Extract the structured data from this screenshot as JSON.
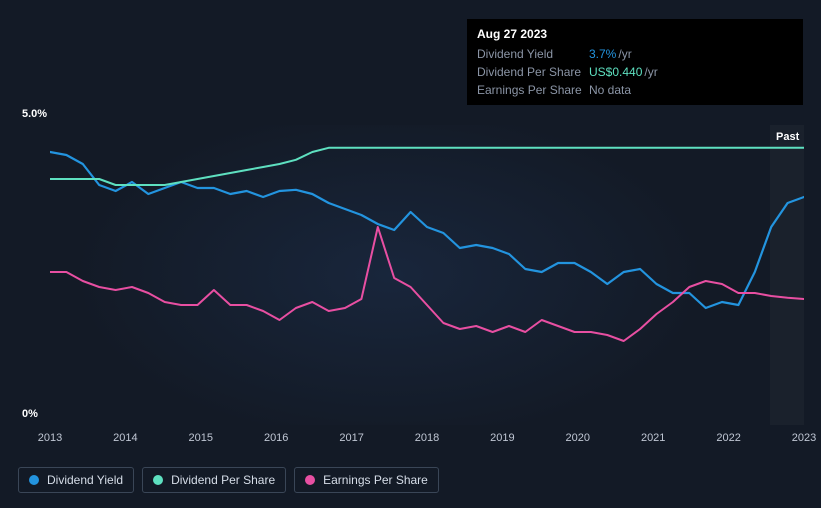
{
  "chart": {
    "type": "line",
    "background_color": "#131a26",
    "grid_visible": false,
    "y_axis": {
      "min": 0,
      "max": 5.0,
      "top_label": "5.0%",
      "bottom_label": "0%",
      "label_color": "#ffffff",
      "label_fontsize": 11
    },
    "x_axis": {
      "ticks": [
        "2013",
        "2014",
        "2015",
        "2016",
        "2017",
        "2018",
        "2019",
        "2020",
        "2021",
        "2022",
        "2023"
      ],
      "label_color": "#c0c7d4",
      "label_fontsize": 11
    },
    "highlight_line": {
      "x_index": 10.65,
      "color": "#ffffff22"
    },
    "past_region": {
      "from_x_index": 9.55,
      "label": "Past",
      "shade_color": "rgba(255,255,255,0.03)"
    },
    "series": [
      {
        "name": "Dividend Yield",
        "color": "#2394df",
        "line_width": 2.2,
        "fill_opacity": 0,
        "values": [
          4.55,
          4.5,
          4.35,
          4.0,
          3.9,
          4.05,
          3.85,
          3.95,
          4.05,
          3.95,
          3.95,
          3.85,
          3.9,
          3.8,
          3.9,
          3.92,
          3.85,
          3.7,
          3.6,
          3.5,
          3.35,
          3.25,
          3.55,
          3.3,
          3.2,
          2.95,
          3.0,
          2.95,
          2.85,
          2.6,
          2.55,
          2.7,
          2.7,
          2.55,
          2.35,
          2.55,
          2.6,
          2.35,
          2.2,
          2.2,
          1.95,
          2.05,
          2.0,
          2.55,
          3.3,
          3.7,
          3.8
        ]
      },
      {
        "name": "Dividend Per Share",
        "color": "#5ee0c0",
        "line_width": 2.0,
        "fill_opacity": 0,
        "values": [
          4.1,
          4.1,
          4.1,
          4.1,
          4.0,
          4.0,
          4.0,
          4.0,
          4.05,
          4.1,
          4.15,
          4.2,
          4.25,
          4.3,
          4.35,
          4.42,
          4.55,
          4.62,
          4.62,
          4.62,
          4.62,
          4.62,
          4.62,
          4.62,
          4.62,
          4.62,
          4.62,
          4.62,
          4.62,
          4.62,
          4.62,
          4.62,
          4.62,
          4.62,
          4.62,
          4.62,
          4.62,
          4.62,
          4.62,
          4.62,
          4.62,
          4.62,
          4.62,
          4.62,
          4.62,
          4.62,
          4.62
        ]
      },
      {
        "name": "Earnings Per Share",
        "color": "#e84fa2",
        "line_width": 2.0,
        "fill_opacity": 0,
        "values": [
          2.55,
          2.55,
          2.4,
          2.3,
          2.25,
          2.3,
          2.2,
          2.05,
          2.0,
          2.0,
          2.25,
          2.0,
          2.0,
          1.9,
          1.75,
          1.95,
          2.05,
          1.9,
          1.95,
          2.1,
          3.3,
          2.45,
          2.3,
          2.0,
          1.7,
          1.6,
          1.65,
          1.55,
          1.65,
          1.55,
          1.75,
          1.65,
          1.55,
          1.55,
          1.5,
          1.4,
          1.6,
          1.85,
          2.05,
          2.3,
          2.4,
          2.35,
          2.2,
          2.2,
          2.15,
          2.12,
          2.1
        ]
      }
    ],
    "marker": {
      "series": 0,
      "x_index": 10.95,
      "color": "#2394df"
    }
  },
  "tooltip": {
    "date": "Aug 27 2023",
    "rows": [
      {
        "label": "Dividend Yield",
        "value": "3.7%",
        "value_class": "v-blue",
        "suffix": "/yr"
      },
      {
        "label": "Dividend Per Share",
        "value": "US$0.440",
        "value_class": "v-teal",
        "suffix": "/yr"
      },
      {
        "label": "Earnings Per Share",
        "value": "No data",
        "value_class": "",
        "suffix": ""
      }
    ]
  },
  "legend": {
    "items": [
      {
        "label": "Dividend Yield",
        "color": "#2394df"
      },
      {
        "label": "Dividend Per Share",
        "color": "#5ee0c0"
      },
      {
        "label": "Earnings Per Share",
        "color": "#e84fa2"
      }
    ],
    "border_color": "#3a4657",
    "text_color": "#d6dde8"
  }
}
